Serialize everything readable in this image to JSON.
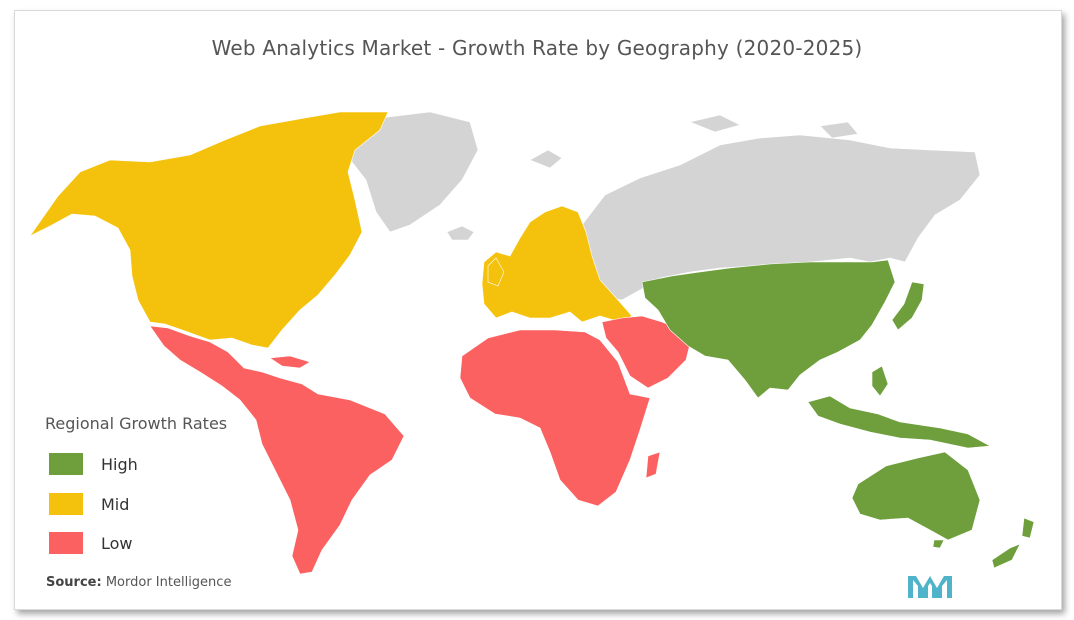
{
  "title": "Web Analytics Market - Growth Rate by Geography (2020-2025)",
  "colors": {
    "high": "#6e9f3c",
    "mid": "#f4c20d",
    "low": "#fb6160",
    "nodata": "#d4d4d4",
    "logo": "#4fb4c9"
  },
  "legend": {
    "title": "Regional Growth Rates",
    "items": [
      {
        "label": "High",
        "color": "#6e9f3c"
      },
      {
        "label": "Mid",
        "color": "#f4c20d"
      },
      {
        "label": "Low",
        "color": "#fb6160"
      }
    ]
  },
  "regions": [
    {
      "name": "North America",
      "level": "Mid"
    },
    {
      "name": "Europe",
      "level": "Mid"
    },
    {
      "name": "Asia-Pacific",
      "level": "High"
    },
    {
      "name": "Latin America",
      "level": "Low"
    },
    {
      "name": "Middle East and Africa",
      "level": "Low"
    }
  ],
  "source": {
    "label": "Source:",
    "text": "Mordor Intelligence"
  },
  "logo_icon": "mordor-intelligence-logo-icon"
}
